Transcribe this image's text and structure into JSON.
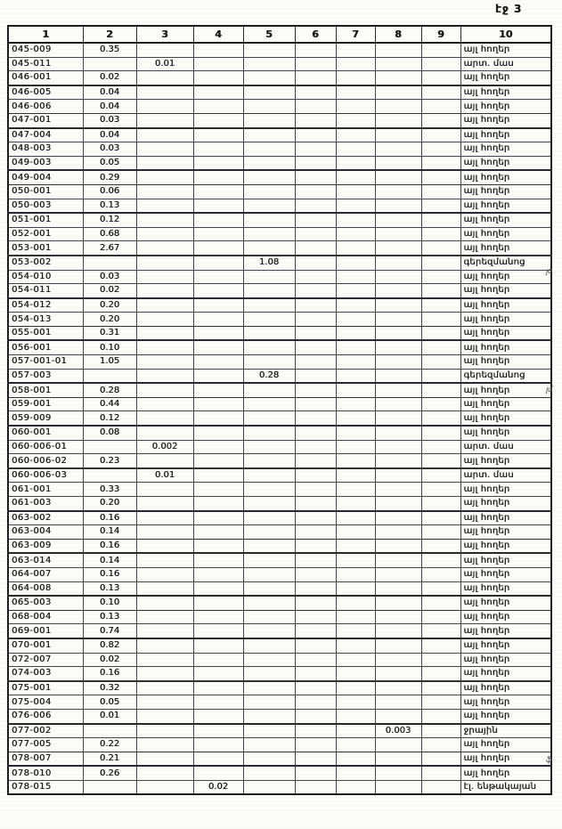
{
  "page_label": "էջ 3",
  "colors": {
    "ink": "#1b1b1b",
    "paper": "#fcfcf9",
    "line": "#46464a"
  },
  "table": {
    "columns": [
      "1",
      "2",
      "3",
      "4",
      "5",
      "6",
      "7",
      "8",
      "9",
      "10"
    ],
    "rows": [
      {
        "id": "045-009",
        "col": 2,
        "val": "0.35",
        "type": "այլ հողեր",
        "mark": ""
      },
      {
        "id": "045-011",
        "col": 3,
        "val": "0.01",
        "type": "արտ. մաս",
        "mark": ""
      },
      {
        "id": "046-001",
        "col": 2,
        "val": "0.02",
        "type": "այլ հողեր",
        "mark": ""
      },
      {
        "id": "046-005",
        "col": 2,
        "val": "0.04",
        "type": "այլ հողեր",
        "mark": ""
      },
      {
        "id": "046-006",
        "col": 2,
        "val": "0.04",
        "type": "այլ հողեր",
        "mark": ""
      },
      {
        "id": "047-001",
        "col": 2,
        "val": "0.03",
        "type": "այլ հողեր",
        "mark": ""
      },
      {
        "id": "047-004",
        "col": 2,
        "val": "0.04",
        "type": "այլ հողեր",
        "mark": ""
      },
      {
        "id": "048-003",
        "col": 2,
        "val": "0.03",
        "type": "այլ հողեր",
        "mark": ""
      },
      {
        "id": "049-003",
        "col": 2,
        "val": "0.05",
        "type": "այլ հողեր",
        "mark": ""
      },
      {
        "id": "049-004",
        "col": 2,
        "val": "0.29",
        "type": "այլ հողեր",
        "mark": ""
      },
      {
        "id": "050-001",
        "col": 2,
        "val": "0.06",
        "type": "այլ հողեր",
        "mark": ""
      },
      {
        "id": "050-003",
        "col": 2,
        "val": "0.13",
        "type": "այլ հողեր",
        "mark": ""
      },
      {
        "id": "051-001",
        "col": 2,
        "val": "0.12",
        "type": "այլ հողեր",
        "mark": ""
      },
      {
        "id": "052-001",
        "col": 2,
        "val": "0.68",
        "type": "այլ հողեր",
        "mark": ""
      },
      {
        "id": "053-001",
        "col": 2,
        "val": "2.67",
        "type": "այլ հողեր",
        "mark": ""
      },
      {
        "id": "053-002",
        "col": 5,
        "val": "1.08",
        "type": "գերեզմանոց",
        "mark": "յօ"
      },
      {
        "id": "054-010",
        "col": 2,
        "val": "0.03",
        "type": "այլ հողեր",
        "mark": ""
      },
      {
        "id": "054-011",
        "col": 2,
        "val": "0.02",
        "type": "այլ հողեր",
        "mark": ""
      },
      {
        "id": "054-012",
        "col": 2,
        "val": "0.20",
        "type": "այլ հողեր",
        "mark": ""
      },
      {
        "id": "054-013",
        "col": 2,
        "val": "0.20",
        "type": "այլ հողեր",
        "mark": ""
      },
      {
        "id": "055-001",
        "col": 2,
        "val": "0.31",
        "type": "այլ հողեր",
        "mark": ""
      },
      {
        "id": "056-001",
        "col": 2,
        "val": "0.10",
        "type": "այլ հողեր",
        "mark": ""
      },
      {
        "id": "057-001-01",
        "col": 2,
        "val": "1.05",
        "type": "այլ հողեր",
        "mark": ""
      },
      {
        "id": "057-003",
        "col": 5,
        "val": "0.28",
        "type": "գերեզմանոց",
        "mark": "յմ"
      },
      {
        "id": "058-001",
        "col": 2,
        "val": "0.28",
        "type": "այլ հողեր",
        "mark": ""
      },
      {
        "id": "059-001",
        "col": 2,
        "val": "0.44",
        "type": "այլ հողեր",
        "mark": ""
      },
      {
        "id": "059-009",
        "col": 2,
        "val": "0.12",
        "type": "այլ հողեր",
        "mark": ""
      },
      {
        "id": "060-001",
        "col": 2,
        "val": "0.08",
        "type": "այլ հողեր",
        "mark": ""
      },
      {
        "id": "060-006-01",
        "col": 3,
        "val": "0.002",
        "type": "արտ. մաս",
        "mark": ""
      },
      {
        "id": "060-006-02",
        "col": 2,
        "val": "0.23",
        "type": "այլ հողեր",
        "mark": ""
      },
      {
        "id": "060-006-03",
        "col": 3,
        "val": "0.01",
        "type": "արտ. մաս",
        "mark": ""
      },
      {
        "id": "061-001",
        "col": 2,
        "val": "0.33",
        "type": "այլ հողեր",
        "mark": ""
      },
      {
        "id": "061-003",
        "col": 2,
        "val": "0.20",
        "type": "այլ հողեր",
        "mark": ""
      },
      {
        "id": "063-002",
        "col": 2,
        "val": "0.16",
        "type": "այլ հողեր",
        "mark": ""
      },
      {
        "id": "063-004",
        "col": 2,
        "val": "0.14",
        "type": "այլ հողեր",
        "mark": ""
      },
      {
        "id": "063-009",
        "col": 2,
        "val": "0.16",
        "type": "այլ հողեր",
        "mark": ""
      },
      {
        "id": "063-014",
        "col": 2,
        "val": "0.14",
        "type": "այլ հողեր",
        "mark": ""
      },
      {
        "id": "064-007",
        "col": 2,
        "val": "0.16",
        "type": "այլ հողեր",
        "mark": ""
      },
      {
        "id": "064-008",
        "col": 2,
        "val": "0.13",
        "type": "այլ հողեր",
        "mark": ""
      },
      {
        "id": "065-003",
        "col": 2,
        "val": "0.10",
        "type": "այլ հողեր",
        "mark": ""
      },
      {
        "id": "068-004",
        "col": 2,
        "val": "0.13",
        "type": "այլ հողեր",
        "mark": ""
      },
      {
        "id": "069-001",
        "col": 2,
        "val": "0.74",
        "type": "այլ հողեր",
        "mark": ""
      },
      {
        "id": "070-001",
        "col": 2,
        "val": "0.82",
        "type": "այլ հողեր",
        "mark": ""
      },
      {
        "id": "072-007",
        "col": 2,
        "val": "0.02",
        "type": "այլ հողեր",
        "mark": ""
      },
      {
        "id": "074-003",
        "col": 2,
        "val": "0.16",
        "type": "այլ հողեր",
        "mark": ""
      },
      {
        "id": "075-001",
        "col": 2,
        "val": "0.32",
        "type": "այլ հողեր",
        "mark": ""
      },
      {
        "id": "075-004",
        "col": 2,
        "val": "0.05",
        "type": "այլ հողեր",
        "mark": ""
      },
      {
        "id": "076-006",
        "col": 2,
        "val": "0.01",
        "type": "այլ հողեր",
        "mark": ""
      },
      {
        "id": "077-002",
        "col": 8,
        "val": "0.003",
        "type": "ջրային",
        "mark": "ֆ"
      },
      {
        "id": "077-005",
        "col": 2,
        "val": "0.22",
        "type": "այլ հողեր",
        "mark": ""
      },
      {
        "id": "078-007",
        "col": 2,
        "val": "0.21",
        "type": "այլ հողեր",
        "mark": ""
      },
      {
        "id": "078-010",
        "col": 2,
        "val": "0.26",
        "type": "այլ հողեր",
        "mark": ""
      },
      {
        "id": "078-015",
        "col": 4,
        "val": "0.02",
        "type": "էլ. ենթակայան",
        "mark": ""
      }
    ]
  }
}
